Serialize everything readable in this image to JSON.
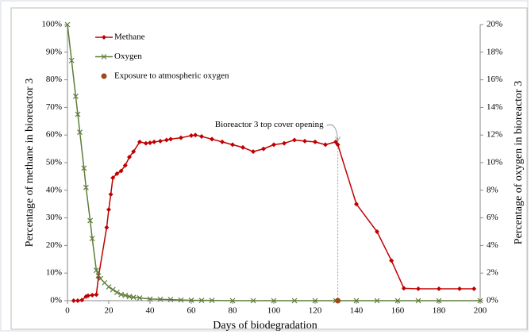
{
  "chart_data": {
    "type": "line",
    "x_label": "Days of biodegradation",
    "y_label": "Percentage of methane in bioreactor 3",
    "y2_label": "Percentage of oxygen in bioreactor 3",
    "xlim": [
      0,
      200
    ],
    "xticks": [
      0,
      20,
      40,
      60,
      80,
      100,
      120,
      140,
      160,
      180,
      200
    ],
    "ylim": [
      0,
      100
    ],
    "yticks": [
      {
        "value": 0,
        "label": "0%"
      },
      {
        "value": 10,
        "label": "10%"
      },
      {
        "value": 20,
        "label": "20%"
      },
      {
        "value": 30,
        "label": "30%"
      },
      {
        "value": 40,
        "label": "40%"
      },
      {
        "value": 50,
        "label": "50%"
      },
      {
        "value": 60,
        "label": "60%"
      },
      {
        "value": 70,
        "label": "70%"
      },
      {
        "value": 80,
        "label": "80%"
      },
      {
        "value": 90,
        "label": "90%"
      },
      {
        "value": 100,
        "label": "100%"
      }
    ],
    "y2lim": [
      0,
      20
    ],
    "y2ticks": [
      {
        "value": 0,
        "label": "0%"
      },
      {
        "value": 2,
        "label": "2%"
      },
      {
        "value": 4,
        "label": "4%"
      },
      {
        "value": 6,
        "label": "6%"
      },
      {
        "value": 8,
        "label": "8%"
      },
      {
        "value": 10,
        "label": "10%"
      },
      {
        "value": 12,
        "label": "12%"
      },
      {
        "value": 14,
        "label": "14%"
      },
      {
        "value": 16,
        "label": "16%"
      },
      {
        "value": 18,
        "label": "18%"
      },
      {
        "value": 20,
        "label": "20%"
      }
    ],
    "legend": "upper left",
    "series": [
      {
        "name": "Methane",
        "color": "#c00000",
        "marker": "diamond",
        "line": true,
        "x": [
          3,
          5,
          7,
          9,
          10,
          12,
          14,
          15,
          19,
          20,
          21,
          22,
          24,
          26,
          28,
          30,
          32,
          35,
          38,
          40,
          42,
          45,
          48,
          50,
          55,
          60,
          62,
          65,
          70,
          75,
          80,
          85,
          90,
          95,
          100,
          105,
          110,
          115,
          120,
          125,
          130,
          131,
          140,
          150,
          157,
          163,
          170,
          180,
          190,
          197
        ],
        "values": [
          0,
          0,
          0.2,
          1.5,
          1.8,
          2,
          2.2,
          8.5,
          26.5,
          33,
          38.5,
          44.5,
          46,
          47,
          49,
          52,
          54,
          57.5,
          57,
          57.2,
          57.5,
          57.8,
          58.2,
          58.5,
          59,
          59.8,
          60,
          59.5,
          58.5,
          57.5,
          56.5,
          55.5,
          54,
          55,
          56.5,
          57,
          58.2,
          57.8,
          57.5,
          56.5,
          57.5,
          56.5,
          35,
          25,
          14.5,
          4.5,
          4.3,
          4.3,
          4.3,
          4.3
        ]
      },
      {
        "name": "Oxygen",
        "color": "#5e7d3a",
        "marker": "x",
        "line": true,
        "axis": "y2",
        "x": [
          0,
          2,
          4,
          5,
          6,
          8,
          9,
          11,
          12,
          14,
          15,
          16,
          18,
          20,
          22,
          24,
          26,
          28,
          30,
          32,
          35,
          40,
          45,
          50,
          55,
          60,
          65,
          70,
          80,
          90,
          100,
          110,
          120,
          130,
          140,
          150,
          160,
          170,
          180,
          200
        ],
        "values": [
          20,
          17.4,
          14.8,
          13.5,
          12.2,
          9.6,
          8.2,
          5.8,
          4.5,
          2.2,
          1.8,
          1.6,
          1.3,
          1.0,
          0.8,
          0.6,
          0.45,
          0.38,
          0.3,
          0.25,
          0.2,
          0.12,
          0.1,
          0.08,
          0.05,
          0.03,
          0.02,
          0.02,
          0,
          0,
          0,
          0,
          0,
          0,
          0,
          0,
          0,
          0,
          0,
          0
        ]
      },
      {
        "name": "Exposure to atmospheric oxygen",
        "color": "#9c4a1a",
        "marker": "circle",
        "line": false,
        "axis": "y2",
        "x": [
          131
        ],
        "values": [
          0
        ]
      }
    ],
    "annotation": {
      "text": "Bioreactor 3 top cover opening",
      "x": 131,
      "y": 56.5
    }
  }
}
